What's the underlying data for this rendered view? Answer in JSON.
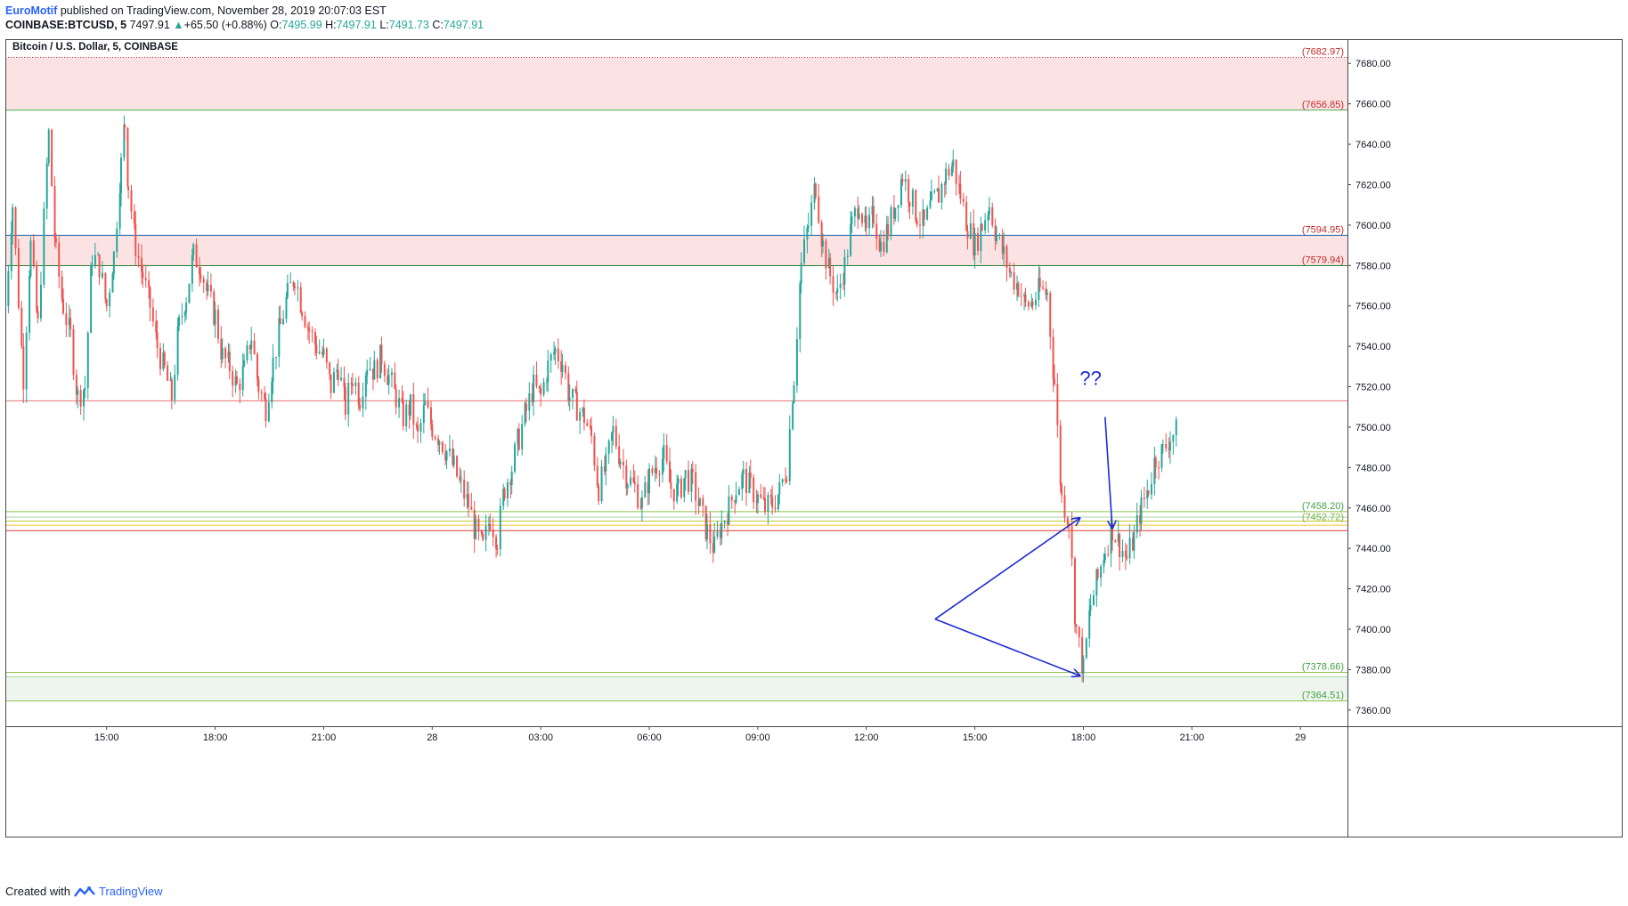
{
  "header": {
    "brand": "EuroMotif",
    "published": "published on TradingView.com, November 28, 2019 20:07:03 EST",
    "symbol": "COINBASE:BTCUSD, 5",
    "last": "7497.91",
    "change_arrow": "▲",
    "change": "+65.50 (+0.88%)",
    "o_label": "O:",
    "o_value": "7495.99",
    "h_label": "H:",
    "h_value": "7497.91",
    "l_label": "L:",
    "l_value": "7491.73",
    "c_label": "C:",
    "c_value": "7497.91"
  },
  "footer": {
    "created_with": "Created with",
    "brand": "TradingView",
    "logo_icon": "tradingview-logo-icon"
  },
  "colors": {
    "up": "#26a69a",
    "down": "#ef5350",
    "accent": "#2962ff",
    "resistance_zone": "#fbe3e3",
    "support_zone": "#eef5ee",
    "annotation": "#1f2bd4"
  },
  "chart_data": {
    "type": "candlestick",
    "title": "Bitcoin / U.S. Dollar, 5, COINBASE",
    "xlabel": "",
    "ylabel": "",
    "ylim": [
      7352,
      7692
    ],
    "y_ticks": [
      7360,
      7380,
      7400,
      7420,
      7440,
      7460,
      7480,
      7500,
      7520,
      7540,
      7560,
      7580,
      7600,
      7620,
      7640,
      7660,
      7680
    ],
    "y_tick_labels": [
      "7360.00",
      "7380.00",
      "7400.00",
      "7420.00",
      "7440.00",
      "7460.00",
      "7480.00",
      "7500.00",
      "7520.00",
      "7540.00",
      "7560.00",
      "7580.00",
      "7600.00",
      "7620.00",
      "7640.00",
      "7660.00",
      "7680.00"
    ],
    "x_tick_labels": [
      "15:00",
      "18:00",
      "21:00",
      "28",
      "03:00",
      "06:00",
      "09:00",
      "12:00",
      "15:00",
      "18:00",
      "21:00",
      "29"
    ],
    "x_tick_hours": [
      15,
      18,
      21,
      24,
      27,
      30,
      33,
      36,
      39,
      42,
      45,
      48
    ],
    "x_range_hours": [
      12.2,
      49.3
    ],
    "grid": false,
    "zones": [
      {
        "from": 7656.85,
        "to": 7682.97,
        "kind": "resistance"
      },
      {
        "from": 7579.94,
        "to": 7594.95,
        "kind": "resistance"
      },
      {
        "from": 7364.51,
        "to": 7376.5,
        "kind": "support"
      }
    ],
    "levels": [
      {
        "price": 7682.97,
        "color": "#c62828",
        "dotted": true
      },
      {
        "price": 7656.85,
        "color": "#4caf50"
      },
      {
        "price": 7594.95,
        "color": "#1e5fa8"
      },
      {
        "price": 7579.94,
        "color": "#2e7d32"
      },
      {
        "price": 7513.0,
        "color": "#e57373"
      },
      {
        "price": 7458.2,
        "color": "#8bc34a"
      },
      {
        "price": 7455.5,
        "color": "#a5d6a7"
      },
      {
        "price": 7453.5,
        "color": "#c0ca33"
      },
      {
        "price": 7451.5,
        "color": "#fbc02d"
      },
      {
        "price": 7448.8,
        "color": "#e53935"
      },
      {
        "price": 7378.66,
        "color": "#8bc34a"
      },
      {
        "price": 7376.5,
        "color": "#a5d6a7"
      },
      {
        "price": 7364.51,
        "color": "#8bc34a"
      }
    ],
    "price_labels": [
      {
        "price": 7682.97,
        "text": "(7682.97)",
        "color": "#c62828"
      },
      {
        "price": 7656.85,
        "text": "(7656.85)",
        "color": "#c62828"
      },
      {
        "price": 7594.95,
        "text": "(7594.95)",
        "color": "#c62828"
      },
      {
        "price": 7579.94,
        "text": "(7579.94)",
        "color": "#c62828"
      },
      {
        "price": 7458.2,
        "text": "(7458.20)",
        "color": "#43a047"
      },
      {
        "price": 7452.72,
        "text": "(7452.72)",
        "color": "#7cb342"
      },
      {
        "price": 7378.66,
        "text": "(7378.66)",
        "color": "#43a047"
      },
      {
        "price": 7364.51,
        "text": "(7364.51)",
        "color": "#43a047"
      }
    ],
    "annotation_text": "??",
    "annotation_text_at": {
      "hour": 41.9,
      "price": 7521
    },
    "arrows": [
      {
        "from": {
          "hour": 37.9,
          "price": 7405
        },
        "to": {
          "hour": 41.9,
          "price": 7455
        }
      },
      {
        "from": {
          "hour": 37.9,
          "price": 7405
        },
        "to": {
          "hour": 41.9,
          "price": 7377
        }
      },
      {
        "from": {
          "hour": 42.6,
          "price": 7505
        },
        "to": {
          "hour": 42.8,
          "price": 7450
        }
      }
    ],
    "price_path": [
      [
        12.2,
        7560
      ],
      [
        12.4,
        7610
      ],
      [
        12.7,
        7525
      ],
      [
        12.9,
        7590
      ],
      [
        13.1,
        7550
      ],
      [
        13.4,
        7645
      ],
      [
        13.6,
        7585
      ],
      [
        13.8,
        7560
      ],
      [
        14.0,
        7545
      ],
      [
        14.2,
        7515
      ],
      [
        14.4,
        7520
      ],
      [
        14.6,
        7585
      ],
      [
        14.8,
        7580
      ],
      [
        15.0,
        7560
      ],
      [
        15.2,
        7585
      ],
      [
        15.4,
        7630
      ],
      [
        15.5,
        7650
      ],
      [
        15.6,
        7620
      ],
      [
        15.8,
        7590
      ],
      [
        16.0,
        7575
      ],
      [
        16.2,
        7560
      ],
      [
        16.4,
        7540
      ],
      [
        16.6,
        7528
      ],
      [
        16.8,
        7515
      ],
      [
        17.0,
        7550
      ],
      [
        17.2,
        7565
      ],
      [
        17.4,
        7585
      ],
      [
        17.6,
        7580
      ],
      [
        17.8,
        7565
      ],
      [
        18.0,
        7555
      ],
      [
        18.2,
        7535
      ],
      [
        18.4,
        7530
      ],
      [
        18.6,
        7520
      ],
      [
        18.8,
        7528
      ],
      [
        19.0,
        7545
      ],
      [
        19.2,
        7520
      ],
      [
        19.4,
        7510
      ],
      [
        19.6,
        7532
      ],
      [
        19.8,
        7550
      ],
      [
        20.0,
        7565
      ],
      [
        20.2,
        7575
      ],
      [
        20.4,
        7560
      ],
      [
        20.6,
        7548
      ],
      [
        20.8,
        7540
      ],
      [
        21.0,
        7535
      ],
      [
        21.2,
        7520
      ],
      [
        21.4,
        7530
      ],
      [
        21.6,
        7510
      ],
      [
        21.8,
        7525
      ],
      [
        22.0,
        7515
      ],
      [
        22.2,
        7532
      ],
      [
        22.4,
        7528
      ],
      [
        22.6,
        7535
      ],
      [
        22.8,
        7525
      ],
      [
        23.0,
        7515
      ],
      [
        23.2,
        7505
      ],
      [
        23.4,
        7510
      ],
      [
        23.6,
        7495
      ],
      [
        23.8,
        7510
      ],
      [
        24.0,
        7500
      ],
      [
        24.2,
        7495
      ],
      [
        24.4,
        7488
      ],
      [
        24.6,
        7480
      ],
      [
        24.8,
        7470
      ],
      [
        25.0,
        7462
      ],
      [
        25.2,
        7448
      ],
      [
        25.4,
        7440
      ],
      [
        25.6,
        7455
      ],
      [
        25.8,
        7445
      ],
      [
        26.0,
        7470
      ],
      [
        26.2,
        7480
      ],
      [
        26.4,
        7495
      ],
      [
        26.6,
        7508
      ],
      [
        26.8,
        7520
      ],
      [
        27.0,
        7515
      ],
      [
        27.2,
        7530
      ],
      [
        27.4,
        7538
      ],
      [
        27.6,
        7532
      ],
      [
        27.8,
        7515
      ],
      [
        28.0,
        7510
      ],
      [
        28.2,
        7505
      ],
      [
        28.4,
        7495
      ],
      [
        28.6,
        7470
      ],
      [
        28.8,
        7480
      ],
      [
        29.0,
        7498
      ],
      [
        29.2,
        7485
      ],
      [
        29.4,
        7475
      ],
      [
        29.6,
        7470
      ],
      [
        29.8,
        7462
      ],
      [
        30.0,
        7475
      ],
      [
        30.2,
        7482
      ],
      [
        30.4,
        7485
      ],
      [
        30.6,
        7470
      ],
      [
        30.8,
        7468
      ],
      [
        31.0,
        7476
      ],
      [
        31.2,
        7472
      ],
      [
        31.4,
        7460
      ],
      [
        31.6,
        7448
      ],
      [
        31.8,
        7440
      ],
      [
        32.0,
        7452
      ],
      [
        32.2,
        7460
      ],
      [
        32.4,
        7470
      ],
      [
        32.6,
        7475
      ],
      [
        32.8,
        7470
      ],
      [
        33.0,
        7465
      ],
      [
        33.2,
        7460
      ],
      [
        33.4,
        7462
      ],
      [
        33.6,
        7468
      ],
      [
        33.8,
        7480
      ],
      [
        34.0,
        7525
      ],
      [
        34.2,
        7580
      ],
      [
        34.4,
        7600
      ],
      [
        34.6,
        7620
      ],
      [
        34.8,
        7590
      ],
      [
        35.0,
        7575
      ],
      [
        35.2,
        7565
      ],
      [
        35.4,
        7580
      ],
      [
        35.6,
        7600
      ],
      [
        35.8,
        7612
      ],
      [
        36.0,
        7595
      ],
      [
        36.2,
        7605
      ],
      [
        36.4,
        7590
      ],
      [
        36.6,
        7598
      ],
      [
        36.8,
        7610
      ],
      [
        37.0,
        7625
      ],
      [
        37.2,
        7615
      ],
      [
        37.4,
        7605
      ],
      [
        37.6,
        7600
      ],
      [
        37.8,
        7610
      ],
      [
        38.0,
        7615
      ],
      [
        38.2,
        7625
      ],
      [
        38.4,
        7630
      ],
      [
        38.6,
        7615
      ],
      [
        38.8,
        7600
      ],
      [
        39.0,
        7590
      ],
      [
        39.2,
        7600
      ],
      [
        39.4,
        7610
      ],
      [
        39.6,
        7595
      ],
      [
        39.8,
        7585
      ],
      [
        40.0,
        7575
      ],
      [
        40.2,
        7570
      ],
      [
        40.4,
        7560
      ],
      [
        40.6,
        7562
      ],
      [
        40.8,
        7568
      ],
      [
        41.0,
        7566
      ],
      [
        41.2,
        7522
      ],
      [
        41.4,
        7465
      ],
      [
        41.6,
        7455
      ],
      [
        41.8,
        7400
      ],
      [
        42.0,
        7380
      ],
      [
        42.2,
        7412
      ],
      [
        42.4,
        7425
      ],
      [
        42.6,
        7440
      ],
      [
        42.8,
        7450
      ],
      [
        43.0,
        7442
      ],
      [
        43.2,
        7435
      ],
      [
        43.4,
        7445
      ],
      [
        43.6,
        7460
      ],
      [
        43.8,
        7470
      ],
      [
        44.0,
        7485
      ],
      [
        44.2,
        7488
      ],
      [
        44.4,
        7495
      ],
      [
        44.6,
        7498
      ]
    ]
  }
}
